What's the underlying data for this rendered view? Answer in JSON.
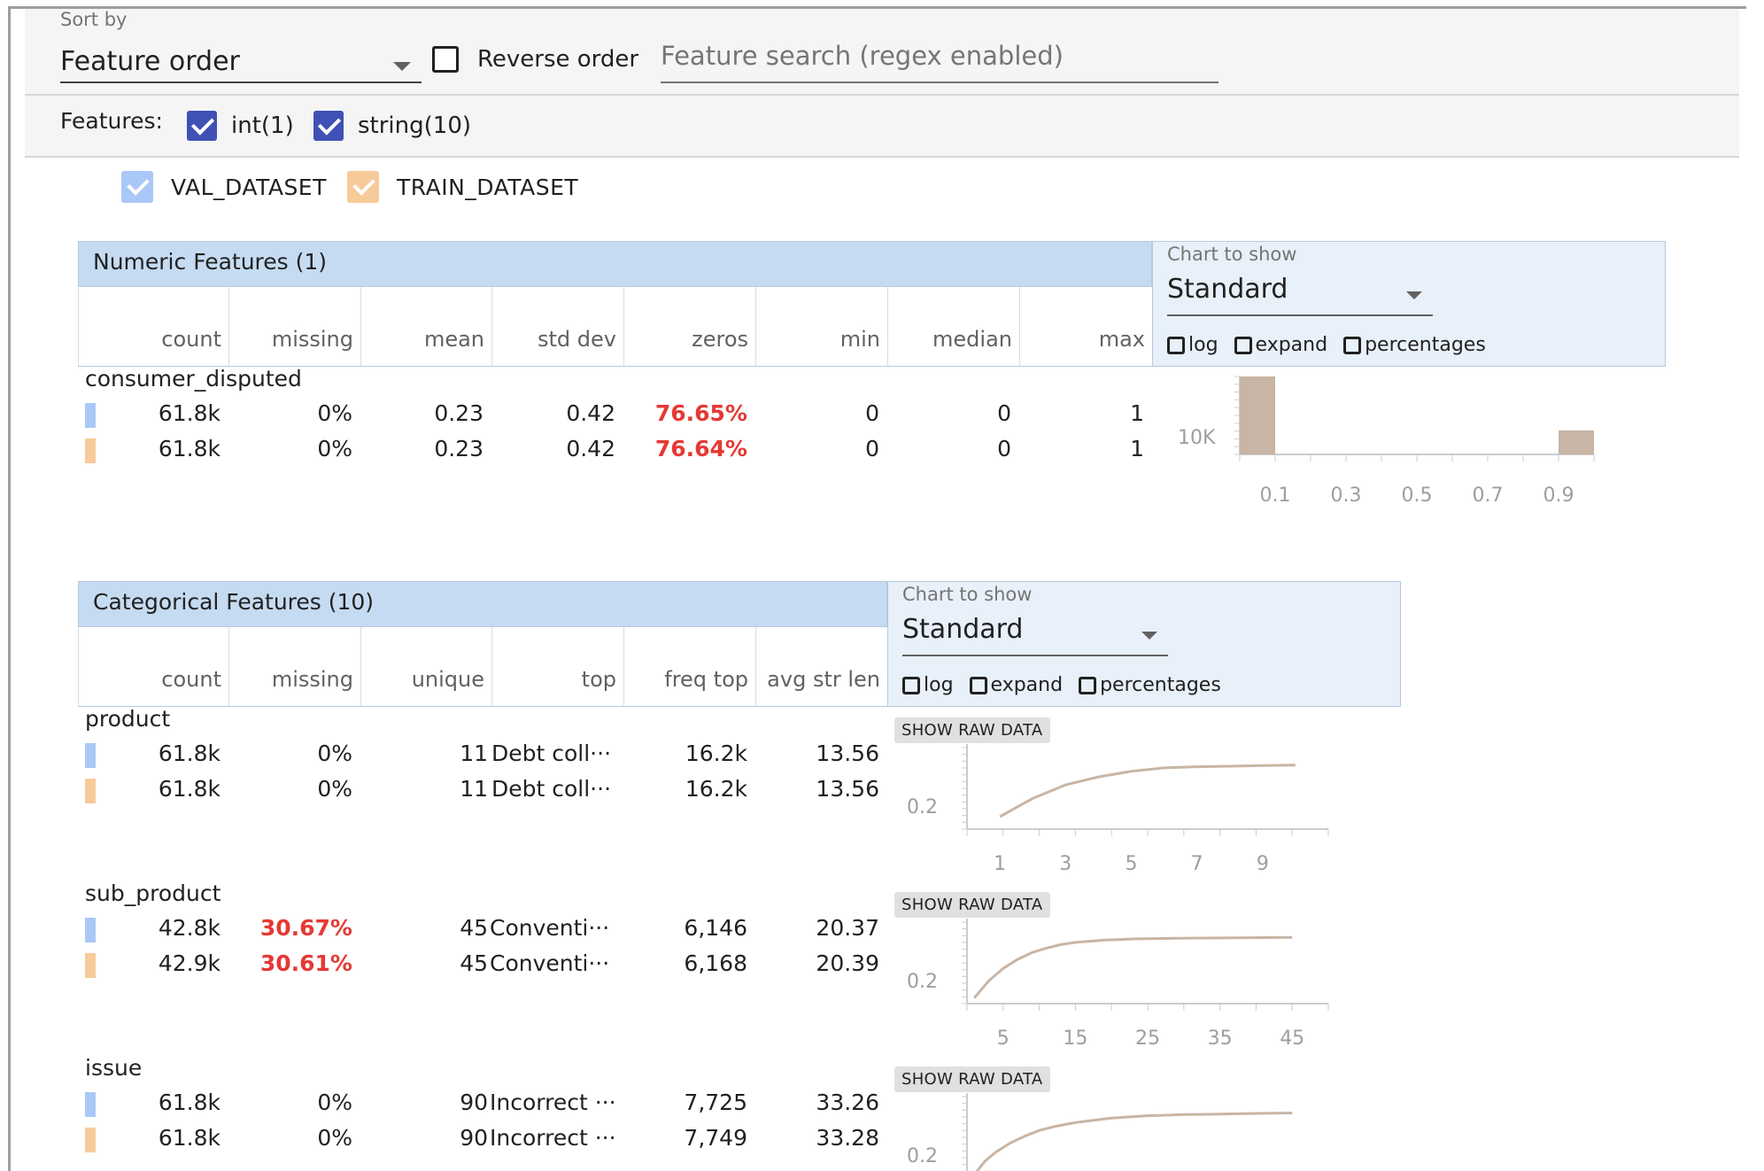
{
  "toolbar": {
    "sort_label": "Sort by",
    "sort_value": "Feature order",
    "reverse_label": "Reverse order",
    "search_placeholder": "Feature search (regex enabled)"
  },
  "features_filter": {
    "label": "Features:",
    "items": [
      {
        "label": "int(1)",
        "checked": true
      },
      {
        "label": "string(10)",
        "checked": true
      }
    ]
  },
  "datasets": [
    {
      "name": "VAL_DATASET",
      "color": "#aac8f7"
    },
    {
      "name": "TRAIN_DATASET",
      "color": "#f7ca99"
    }
  ],
  "colors": {
    "header_bg": "#c5dbf1",
    "panel_bg": "#e8f0f9",
    "alert_red": "#e53935",
    "bar_color": "#c8b5a5",
    "checkbox_blue": "#3f51b5"
  },
  "numeric": {
    "title": "Numeric Features (1)",
    "columns": [
      "count",
      "missing",
      "mean",
      "std dev",
      "zeros",
      "min",
      "median",
      "max"
    ],
    "chart_to_show_label": "Chart to show",
    "chart_value": "Standard",
    "options": [
      "log",
      "expand",
      "percentages"
    ],
    "features": [
      {
        "name": "consumer_disputed",
        "rows": [
          {
            "dataset": "VAL_DATASET",
            "values": [
              "61.8k",
              "0%",
              "0.23",
              "0.42",
              "76.65%",
              "0",
              "0",
              "1"
            ]
          },
          {
            "dataset": "TRAIN_DATASET",
            "values": [
              "61.8k",
              "0%",
              "0.23",
              "0.42",
              "76.64%",
              "0",
              "0",
              "1"
            ]
          }
        ]
      }
    ]
  },
  "categorical": {
    "title": "Categorical Features (10)",
    "columns": [
      "count",
      "missing",
      "unique",
      "top",
      "freq top",
      "avg str len"
    ],
    "chart_to_show_label": "Chart to show",
    "chart_value": "Standard",
    "options": [
      "log",
      "expand",
      "percentages"
    ],
    "raw_button": "SHOW RAW DATA",
    "features": [
      {
        "name": "product",
        "rows": [
          {
            "dataset": "VAL_DATASET",
            "count": "61.8k",
            "missing": "0%",
            "unique": "11",
            "top": "Debt coll···",
            "freq_top": "16.2k",
            "avg_len": "13.56"
          },
          {
            "dataset": "TRAIN_DATASET",
            "count": "61.8k",
            "missing": "0%",
            "unique": "11",
            "top": "Debt coll···",
            "freq_top": "16.2k",
            "avg_len": "13.56"
          }
        ]
      },
      {
        "name": "sub_product",
        "rows": [
          {
            "dataset": "VAL_DATASET",
            "count": "42.8k",
            "missing": "30.67%",
            "unique": "45",
            "top": "Conventi···",
            "freq_top": "6,146",
            "avg_len": "20.37"
          },
          {
            "dataset": "TRAIN_DATASET",
            "count": "42.9k",
            "missing": "30.61%",
            "unique": "45",
            "top": "Conventi···",
            "freq_top": "6,168",
            "avg_len": "20.39"
          }
        ]
      },
      {
        "name": "issue",
        "rows": [
          {
            "dataset": "VAL_DATASET",
            "count": "61.8k",
            "missing": "0%",
            "unique": "90",
            "top": "Incorrect ···",
            "freq_top": "7,725",
            "avg_len": "33.26"
          },
          {
            "dataset": "TRAIN_DATASET",
            "count": "61.8k",
            "missing": "0%",
            "unique": "90",
            "top": "Incorrect ···",
            "freq_top": "7,749",
            "avg_len": "33.28"
          }
        ]
      }
    ]
  },
  "chart_data": [
    {
      "type": "bar",
      "feature": "consumer_disputed",
      "x": [
        0.05,
        0.95
      ],
      "values": [
        14300,
        4400
      ],
      "xticks": [
        "0.1",
        "0.3",
        "0.5",
        "0.7",
        "0.9"
      ],
      "ytick_label": "10K",
      "xlim": [
        0,
        1
      ],
      "ylim": [
        0,
        14300
      ]
    },
    {
      "type": "line",
      "feature": "product",
      "x": [
        1,
        2,
        3,
        4,
        5,
        6,
        7,
        8,
        9,
        10
      ],
      "values": [
        0.26,
        0.42,
        0.54,
        0.61,
        0.66,
        0.69,
        0.7,
        0.705,
        0.71,
        0.715
      ],
      "ytick_label": "0.2",
      "xticks": [
        "1",
        "3",
        "5",
        "7",
        "9"
      ],
      "xlim": [
        0,
        11
      ],
      "ylim": [
        0.15,
        0.9
      ]
    },
    {
      "type": "line",
      "feature": "sub_product",
      "x": [
        1,
        3,
        5,
        7,
        9,
        11,
        13,
        15,
        17,
        19,
        21,
        23,
        25,
        27,
        29,
        31,
        33,
        35,
        37,
        39,
        41,
        43,
        45
      ],
      "values": [
        0.2,
        0.35,
        0.46,
        0.54,
        0.6,
        0.64,
        0.67,
        0.69,
        0.7,
        0.71,
        0.715,
        0.72,
        0.722,
        0.724,
        0.726,
        0.727,
        0.728,
        0.729,
        0.73,
        0.731,
        0.732,
        0.733,
        0.734
      ],
      "ytick_label": "0.2",
      "xticks": [
        "5",
        "15",
        "25",
        "35",
        "45"
      ],
      "xlim": [
        0,
        50
      ],
      "ylim": [
        0.15,
        0.9
      ]
    },
    {
      "type": "line",
      "feature": "issue",
      "x": [
        1,
        3,
        5,
        8,
        12,
        16,
        20,
        25,
        30,
        35,
        40,
        45,
        50,
        55,
        60,
        65,
        70,
        75,
        80,
        85,
        90
      ],
      "values": [
        0.1,
        0.22,
        0.3,
        0.38,
        0.46,
        0.52,
        0.57,
        0.61,
        0.64,
        0.66,
        0.68,
        0.69,
        0.7,
        0.705,
        0.71,
        0.712,
        0.715,
        0.717,
        0.72,
        0.722,
        0.724
      ],
      "ytick_label": "0.2",
      "xticks": [],
      "xlim": [
        0,
        100
      ],
      "ylim": [
        0.15,
        0.9
      ]
    }
  ]
}
